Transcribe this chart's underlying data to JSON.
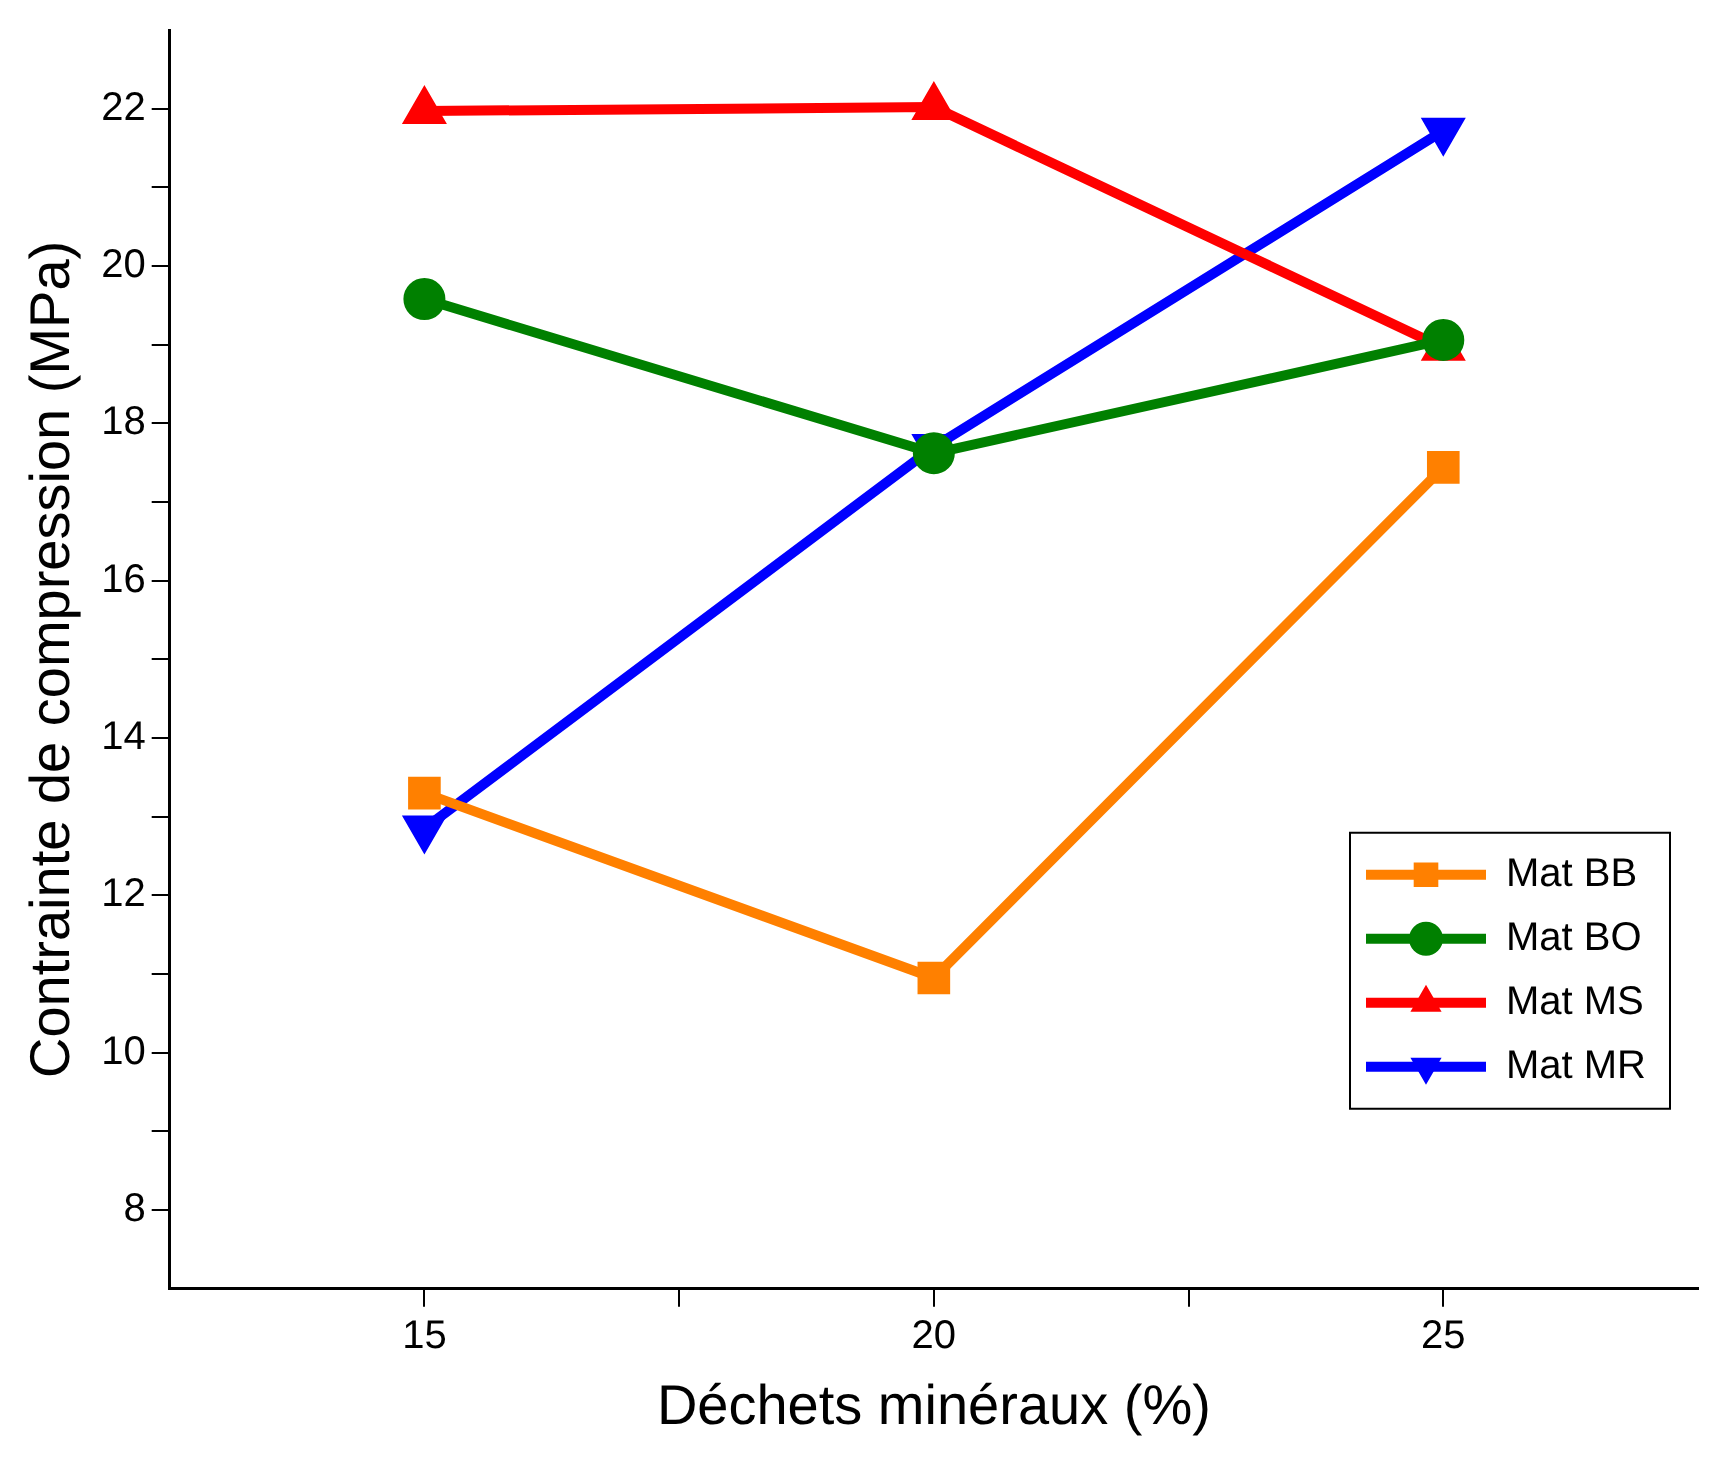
{
  "chart_data": {
    "type": "line",
    "xlabel": "Déchets minéraux (%)",
    "ylabel": "Contrainte de compression (MPa)",
    "x": [
      15,
      20,
      25
    ],
    "series": [
      {
        "name": "Mat BB",
        "color": "#ff8000",
        "marker": "square",
        "values": [
          13.3,
          10.95,
          17.44
        ]
      },
      {
        "name": "Mat BO",
        "color": "#008000",
        "marker": "circle",
        "values": [
          19.58,
          17.62,
          19.06
        ]
      },
      {
        "name": "Mat MS",
        "color": "#ff0000",
        "marker": "triangle",
        "values": [
          21.97,
          22.02,
          18.96
        ]
      },
      {
        "name": "Mat MR",
        "color": "#0000ff",
        "marker": "triangle-down",
        "values": [
          12.85,
          17.7,
          21.72
        ]
      }
    ],
    "xlim": [
      12.5,
      27.5
    ],
    "xticks": [
      15,
      {
        "value": 17.5,
        "label": null
      },
      20,
      {
        "value": 22.5,
        "label": null
      },
      25
    ],
    "ylim": [
      7,
      23
    ],
    "yticks": [
      8,
      {
        "value": 9,
        "label": null
      },
      10,
      {
        "value": 11,
        "label": null
      },
      12,
      {
        "value": 13,
        "label": null
      },
      14,
      {
        "value": 15,
        "label": null
      },
      16,
      {
        "value": 17,
        "label": null
      },
      18,
      {
        "value": 19,
        "label": null
      },
      20,
      {
        "value": 21,
        "label": null
      },
      22
    ],
    "grid": false,
    "legend": "bottom right",
    "line_style": "solid"
  }
}
